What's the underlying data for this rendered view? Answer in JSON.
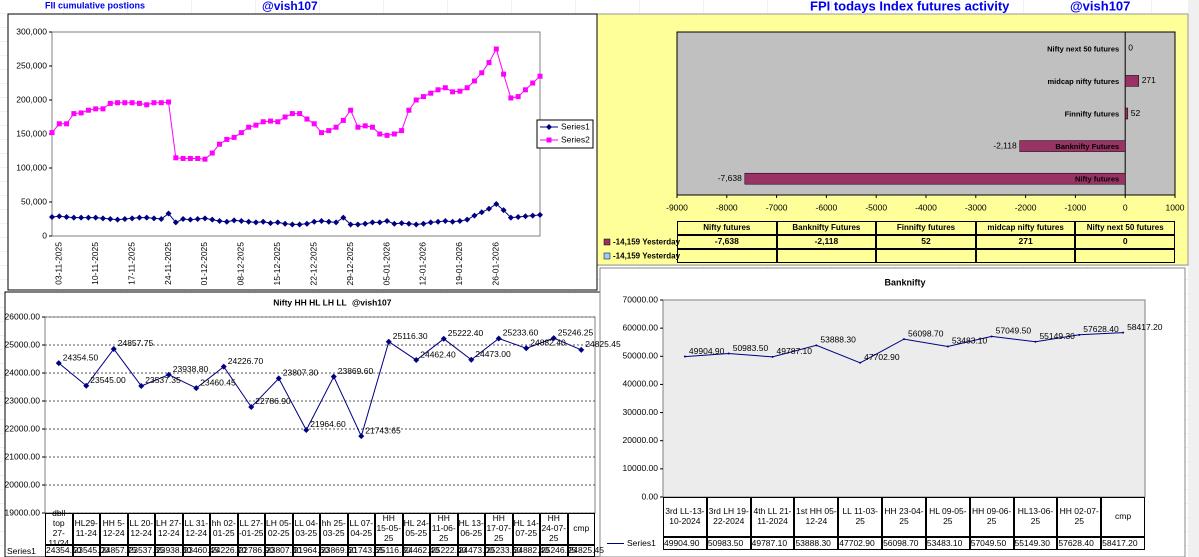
{
  "header": {
    "left_title": "FII cumulative postions",
    "left_handle": "@vish107",
    "right_title": "FPI todays Index futures activity",
    "right_handle": "@vish107"
  },
  "chart_data": [
    {
      "type": "line",
      "categories": [
        null,
        "03-11-2025",
        null,
        null,
        null,
        null,
        "10-11-2025",
        null,
        null,
        null,
        null,
        "17-11-2025",
        null,
        null,
        null,
        null,
        "24-11-2025",
        null,
        null,
        null,
        null,
        "01-12-2025",
        null,
        null,
        null,
        null,
        "08-12-2025",
        null,
        null,
        null,
        null,
        "15-12-2025",
        null,
        null,
        null,
        null,
        "22-12-2025",
        null,
        null,
        null,
        null,
        "29-12-2025",
        null,
        null,
        null,
        null,
        "05-01-2026",
        null,
        null,
        null,
        null,
        "12-01-2026",
        null,
        null,
        null,
        null,
        "19-01-2026",
        null,
        null,
        null,
        null,
        "26-01-2026",
        null,
        null,
        null,
        null,
        null,
        null
      ],
      "series": [
        {
          "name": "Series1",
          "color": "#000080",
          "marker": "diamond",
          "values": [
            28000,
            29000,
            28000,
            27000,
            27000,
            27000,
            27000,
            26000,
            25000,
            24000,
            25000,
            26000,
            27000,
            27000,
            26000,
            25000,
            33000,
            20000,
            25000,
            24000,
            25000,
            26000,
            24000,
            22000,
            21000,
            23000,
            22000,
            21000,
            20000,
            21000,
            19000,
            20000,
            18000,
            17000,
            17000,
            18000,
            21000,
            22000,
            21000,
            20000,
            27000,
            17000,
            17000,
            18000,
            20000,
            20000,
            22000,
            18000,
            19000,
            18000,
            17000,
            18000,
            20000,
            21000,
            22000,
            21000,
            22000,
            24000,
            30000,
            35000,
            40000,
            47000,
            38000,
            27000,
            28000,
            29000,
            30000,
            31000
          ]
        },
        {
          "name": "Series2",
          "color": "#ff00ff",
          "marker": "square",
          "values": [
            152000,
            165000,
            165000,
            180000,
            181000,
            185000,
            187000,
            187000,
            195000,
            196000,
            196000,
            196000,
            195000,
            193000,
            196000,
            196000,
            197000,
            115000,
            114000,
            114000,
            114000,
            113000,
            122000,
            135000,
            142000,
            145000,
            152000,
            160000,
            163000,
            168000,
            169000,
            168000,
            175000,
            180000,
            180000,
            172000,
            165000,
            152000,
            155000,
            160000,
            170000,
            185000,
            160000,
            162000,
            160000,
            150000,
            148000,
            150000,
            155000,
            185000,
            200000,
            205000,
            210000,
            215000,
            218000,
            212000,
            213000,
            218000,
            228000,
            240000,
            255000,
            275000,
            238000,
            203000,
            205000,
            215000,
            225000,
            235000
          ]
        }
      ],
      "ylim": [
        0,
        300000
      ],
      "yticks": [
        0,
        {
          "value": 50000,
          "label": "50,000"
        },
        {
          "value": 100000,
          "label": "100,000"
        },
        {
          "value": 150000,
          "label": "150,000"
        },
        {
          "value": 200000,
          "label": "200,000"
        },
        {
          "value": 250000,
          "label": "250,000"
        },
        {
          "value": 300000,
          "label": "300,000"
        }
      ],
      "grid": false,
      "legend": "right"
    },
    {
      "type": "barh",
      "categories": [
        "Nifty futures",
        "Banknifty Futures",
        "Finnifty futures",
        "midcap nifty futures",
        "Nifty next 50 futures"
      ],
      "series": [
        {
          "name": "-14,159 Yesterday",
          "color": "#993366",
          "values": [
            -7638,
            -2118,
            52,
            271,
            0
          ],
          "value_labels": [
            "-7,638",
            "-2,118",
            "52",
            "271",
            "0"
          ]
        },
        {
          "name": "-14,159 Yesterday",
          "color": "#99ccff",
          "values": [
            null,
            null,
            null,
            null,
            null
          ]
        }
      ],
      "xlim": [
        -9000,
        1000
      ],
      "xticks": [
        -9000,
        -8000,
        -7000,
        -6000,
        -5000,
        -4000,
        -3000,
        -2000,
        -1000,
        0,
        1000
      ],
      "grid": false
    },
    {
      "type": "line",
      "title": "Nifty HH HL LH LL",
      "subtitle": "@vish107",
      "categories": [
        "dbll top 27-11/24",
        "HL29-11-24",
        "HH 5-12-24",
        "LL 20-12-24",
        "LH 27-12-24",
        "LL 31-12-24",
        "hh 02-01-25",
        "LL 27--01-25",
        "LH 05-02-25",
        "LL 04-03-25",
        "hh 25-03-25",
        "LL 07-04-25",
        "HH 15-05-25",
        "HL 24-05-25",
        "HH 11-06-25",
        "HL 13-06-25",
        "HH 17-07-25",
        "HL 14-07-25",
        "HH 24-07-25",
        "cmp"
      ],
      "series": [
        {
          "name": "Series1",
          "color": "#000080",
          "marker": "diamond",
          "values": [
            24354.5,
            23545,
            24857.75,
            23537.35,
            23938.8,
            23460.45,
            24226.7,
            22786.9,
            23807.3,
            21964.6,
            23869.6,
            21743.65,
            25116.3,
            24462.4,
            25222.4,
            24473,
            25233.6,
            24882.4,
            25246.25,
            24825.45
          ],
          "value_labels": [
            "24354.50",
            "23545.00",
            "24857.75",
            "23537.35",
            "23938.80",
            "23460.45",
            "24226.70",
            "22786.90",
            "23807.30",
            "21964.60",
            "23869.60",
            "21743.65",
            "25116.30",
            "24462.40",
            "25222.40",
            "24473.00",
            "25233.60",
            "24882.40",
            "25246.25",
            "24825.45"
          ]
        }
      ],
      "ylim": [
        19000,
        26000
      ],
      "yticks": [
        {
          "value": 19000,
          "label": "19000.00"
        },
        {
          "value": 20000,
          "label": "20000.00"
        },
        {
          "value": 21000,
          "label": "21000.00"
        },
        {
          "value": 22000,
          "label": "22000.00"
        },
        {
          "value": 23000,
          "label": "23000.00"
        },
        {
          "value": 24000,
          "label": "24000.00"
        },
        {
          "value": 25000,
          "label": "25000.00"
        },
        {
          "value": 26000,
          "label": "26000.00"
        }
      ],
      "grid": true
    },
    {
      "type": "line",
      "title": "Banknifty",
      "categories": [
        "3rd LL-13-10-2024",
        "3rd LH 19-22-2024",
        "4th LL 21-11-2024",
        "1st HH 05-12-24",
        "LL 11-03-25",
        "HH 23-04-25",
        "HL 09-05-25",
        "HH 09-06-25",
        "HL13-06-25",
        "HH 02-07-25",
        "cmp"
      ],
      "series": [
        {
          "name": "Series1",
          "color": "#000080",
          "marker": "none",
          "values": [
            49904.9,
            50983.5,
            49787.1,
            53888.3,
            47702.9,
            56098.7,
            53483.1,
            57049.5,
            55149.3,
            57628.4,
            58417.2
          ],
          "value_labels": [
            "49904.90",
            "50983.50",
            "49787.10",
            "53888.30",
            "47702.90",
            "56098.70",
            "53483.10",
            "57049.50",
            "55149.30",
            "57628.40",
            "58417.20"
          ]
        }
      ],
      "ylim": [
        0,
        70000
      ],
      "yticks": [
        {
          "value": 0,
          "label": "0.00"
        },
        {
          "value": 10000,
          "label": "10000.00"
        },
        {
          "value": 20000,
          "label": "20000.00"
        },
        {
          "value": 30000,
          "label": "30000.00"
        },
        {
          "value": 40000,
          "label": "40000.00"
        },
        {
          "value": 50000,
          "label": "50000.00"
        },
        {
          "value": 60000,
          "label": "60000.00"
        },
        {
          "value": 70000,
          "label": "70000.00"
        }
      ],
      "grid": false
    }
  ]
}
